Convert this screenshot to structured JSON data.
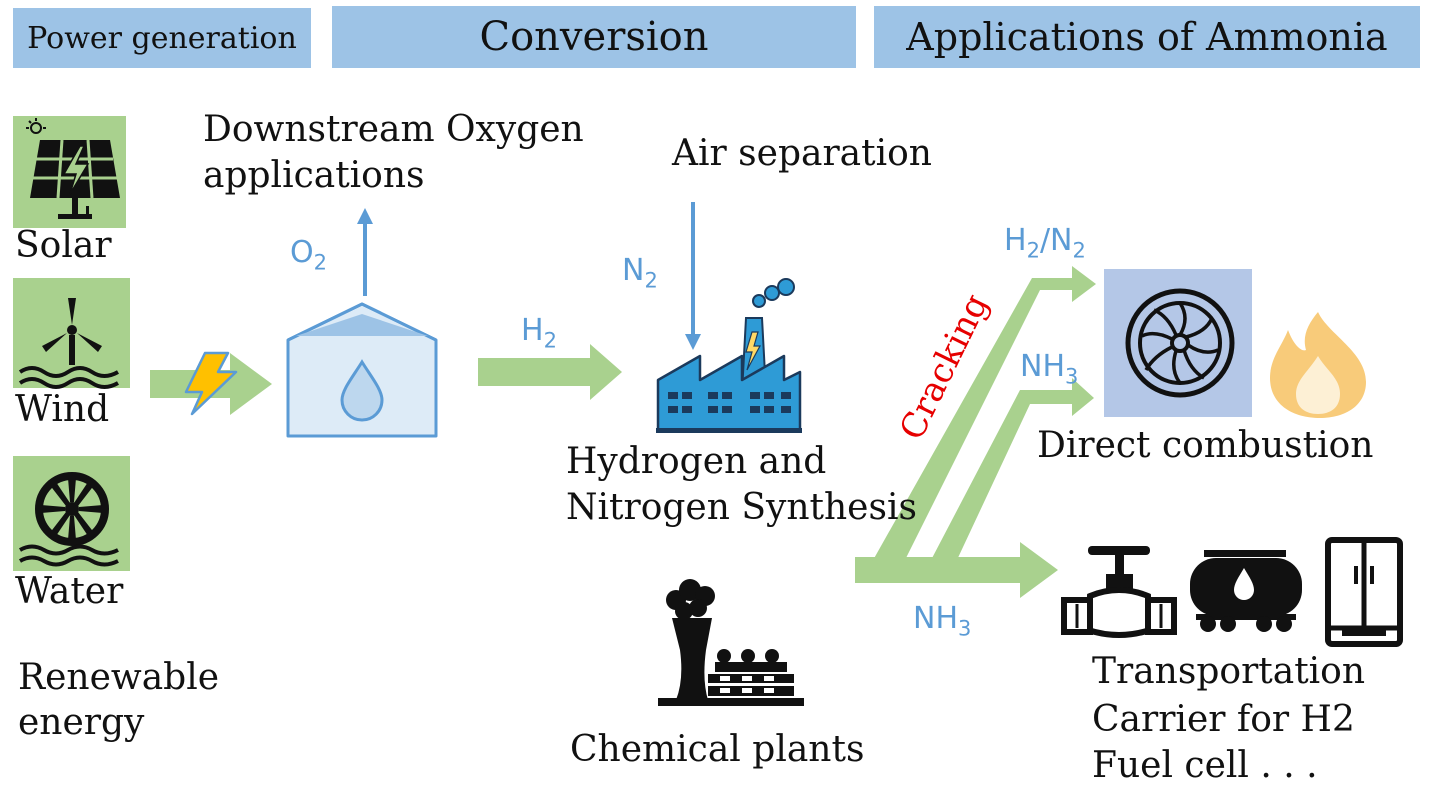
{
  "headers": {
    "power": "Power generation",
    "conversion": "Conversion",
    "applications": "Applications of Ammonia"
  },
  "sources": {
    "solar": "Solar",
    "wind": "Wind",
    "water": "Water",
    "renewable": [
      "Renewable",
      "energy"
    ]
  },
  "electrolysis": {
    "oxygen_label": [
      "Downstream Oxygen",
      "applications"
    ],
    "o2": {
      "base": "O",
      "sub": "2"
    },
    "h2": {
      "base": "H",
      "sub": "2"
    }
  },
  "synthesis": {
    "air_separation": "Air separation",
    "n2": {
      "base": "N",
      "sub": "2"
    },
    "label": [
      "Hydrogen and",
      "Nitrogen Synthesis"
    ]
  },
  "chemical": {
    "label": "Chemical plants"
  },
  "branches": {
    "cracking": "Cracking",
    "h2n2": {
      "a": "H",
      "a_sub": "2",
      "sep": "/N",
      "b_sub": "2"
    },
    "nh3_upper": {
      "base": "NH",
      "sub": "3"
    },
    "nh3_lower": {
      "base": "NH",
      "sub": "3"
    }
  },
  "combustion": {
    "label": "Direct combustion"
  },
  "transport": {
    "lines": [
      "Transportation",
      "Carrier for H2",
      "Fuel cell . . ."
    ]
  },
  "colors": {
    "header_bg": "#9dc3e6",
    "tile_bg": "#a9d18e",
    "arrow_green": "#a9d18e",
    "arrow_blue": "#5b9bd5",
    "label_blue": "#5b9bd5",
    "cracking_red": "#e60000",
    "combustion_box": "#b4c7e7",
    "tank_fill": "#ddebf7",
    "factory_blue": "#2e9bd6"
  },
  "icons": [
    "solar-panel-icon",
    "wind-turbine-icon",
    "water-wheel-icon",
    "lightning-bolt-icon",
    "electrolyzer-tank-icon",
    "factory-icon",
    "chemical-plant-icon",
    "turbine-icon",
    "flame-icon",
    "pipeline-valve-icon",
    "tanker-truck-icon",
    "refrigerator-icon"
  ]
}
